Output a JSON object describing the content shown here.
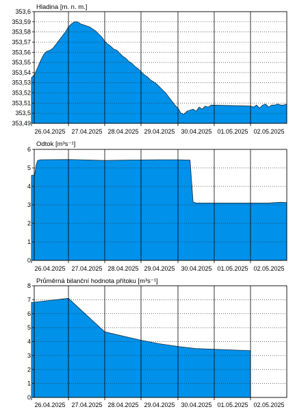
{
  "fill_color": "#0091EA",
  "grid_color": "#333333",
  "x_labels": [
    "26.04.2025",
    "27.04.2025",
    "28.04.2025",
    "29.04.2025",
    "30.04.2025",
    "01.05.2025",
    "02.05.2025"
  ],
  "chart_data": [
    {
      "type": "area",
      "title": "Hladina [m. n. m.]",
      "xlabel": "",
      "ylabel": "",
      "ylim": [
        353.49,
        353.6
      ],
      "yticks": [
        "353,49",
        "353,5",
        "353,51",
        "353,52",
        "353,53",
        "353,54",
        "353,55",
        "353,56",
        "353,57",
        "353,58",
        "353,59",
        "353,6"
      ],
      "xlim": [
        "26.04.2025",
        "02.05.2025"
      ],
      "grid": true,
      "series": [
        {
          "x": [
            "26.04.2025 00:00",
            "26.04.2025 02:00",
            "26.04.2025 04:00",
            "26.04.2025 06:00",
            "26.04.2025 08:00",
            "26.04.2025 10:00",
            "26.04.2025 12:00",
            "26.04.2025 14:00",
            "26.04.2025 16:00",
            "26.04.2025 18:00",
            "26.04.2025 20:00",
            "26.04.2025 22:00",
            "27.04.2025 00:00",
            "27.04.2025 02:00",
            "27.04.2025 04:00",
            "27.04.2025 06:00",
            "27.04.2025 08:00",
            "27.04.2025 10:00",
            "27.04.2025 12:00",
            "27.04.2025 14:00",
            "27.04.2025 16:00",
            "27.04.2025 18:00",
            "27.04.2025 20:00",
            "27.04.2025 22:00",
            "28.04.2025 00:00",
            "28.04.2025 02:00",
            "28.04.2025 04:00",
            "28.04.2025 06:00",
            "28.04.2025 08:00",
            "28.04.2025 10:00",
            "28.04.2025 12:00",
            "28.04.2025 14:00",
            "28.04.2025 16:00",
            "28.04.2025 18:00",
            "28.04.2025 20:00",
            "28.04.2025 22:00",
            "29.04.2025 00:00",
            "29.04.2025 02:00",
            "29.04.2025 04:00",
            "29.04.2025 06:00",
            "29.04.2025 08:00",
            "29.04.2025 10:00",
            "29.04.2025 12:00",
            "29.04.2025 14:00",
            "29.04.2025 16:00",
            "29.04.2025 18:00",
            "29.04.2025 20:00",
            "29.04.2025 22:00",
            "30.04.2025 00:00",
            "30.04.2025 02:00",
            "30.04.2025 04:00",
            "30.04.2025 06:00",
            "30.04.2025 08:00",
            "30.04.2025 10:00",
            "30.04.2025 12:00",
            "30.04.2025 14:00",
            "30.04.2025 16:00",
            "30.04.2025 18:00",
            "30.04.2025 20:00",
            "30.04.2025 22:00",
            "01.05.2025 00:00",
            "01.05.2025 02:00",
            "01.05.2025 04:00",
            "01.05.2025 06:00",
            "01.05.2025 08:00",
            "01.05.2025 10:00",
            "01.05.2025 12:00",
            "01.05.2025 14:00",
            "01.05.2025 16:00",
            "01.05.2025 18:00",
            "01.05.2025 20:00",
            "01.05.2025 22:00",
            "02.05.2025 00:00"
          ],
          "values": [
            353.535,
            353.538,
            353.545,
            353.552,
            353.558,
            353.561,
            353.562,
            353.564,
            353.568,
            353.572,
            353.576,
            353.58,
            353.585,
            353.588,
            353.59,
            353.59,
            353.588,
            353.587,
            353.586,
            353.585,
            353.583,
            353.581,
            353.578,
            353.575,
            353.571,
            353.568,
            353.566,
            353.563,
            353.562,
            353.559,
            353.556,
            353.554,
            353.551,
            353.549,
            353.546,
            353.544,
            353.541,
            353.538,
            353.536,
            353.533,
            353.531,
            353.529,
            353.526,
            353.523,
            353.52,
            353.516,
            353.512,
            353.508,
            353.505,
            353.5,
            353.499,
            353.502,
            353.503,
            353.504,
            353.502,
            353.506,
            353.504,
            353.507,
            353.506,
            353.508,
            353.507,
            353.506,
            353.508,
            353.505,
            353.508,
            353.509,
            353.506,
            353.508,
            353.508,
            353.509,
            353.508,
            353.508,
            353.509
          ]
        }
      ]
    },
    {
      "type": "area",
      "title": "Odtok [m³s⁻¹]",
      "xlabel": "",
      "ylabel": "",
      "ylim": [
        0,
        6
      ],
      "yticks": [
        "0",
        "1",
        "2",
        "3",
        "4",
        "5",
        "6"
      ],
      "xlim": [
        "26.04.2025",
        "02.05.2025"
      ],
      "grid": true,
      "series": [
        {
          "x": [
            "26.04.2025 00:00",
            "26.04.2025 02:00",
            "26.04.2025 03:00",
            "26.04.2025 04:00",
            "26.04.2025 06:00",
            "27.04.2025 00:00",
            "27.04.2025 12:00",
            "28.04.2025 00:00",
            "28.04.2025 12:00",
            "29.04.2025 00:00",
            "29.04.2025 12:00",
            "30.04.2025 00:00",
            "30.04.2025 08:00",
            "30.04.2025 10:00",
            "30.04.2025 12:00",
            "01.05.2025 00:00",
            "01.05.2025 12:00",
            "01.05.2025 20:00",
            "02.05.2025 00:00"
          ],
          "values": [
            4.6,
            4.6,
            5.15,
            5.4,
            5.44,
            5.45,
            5.43,
            5.4,
            5.42,
            5.43,
            5.44,
            5.44,
            5.42,
            3.15,
            3.1,
            3.1,
            3.1,
            3.14,
            3.12
          ]
        }
      ]
    },
    {
      "type": "area",
      "title": "Průměrná bilanční hodnota přítoku   [m³s⁻¹]",
      "xlabel": "",
      "ylabel": "",
      "ylim": [
        0,
        8
      ],
      "yticks": [
        "0",
        "1",
        "2",
        "3",
        "4",
        "5",
        "6",
        "7",
        "8"
      ],
      "xlim": [
        "26.04.2025",
        "02.05.2025"
      ],
      "grid": true,
      "series": [
        {
          "x": [
            "26.04.2025 00:00",
            "26.04.2025 12:00",
            "27.04.2025 00:00",
            "27.04.2025 12:00",
            "28.04.2025 00:00",
            "28.04.2025 12:00",
            "29.04.2025 00:00",
            "29.04.2025 12:00",
            "30.04.2025 00:00",
            "30.04.2025 12:00",
            "01.05.2025 00:00"
          ],
          "values": [
            6.8,
            6.95,
            7.1,
            5.9,
            4.7,
            4.4,
            4.1,
            3.85,
            3.65,
            3.5,
            3.35
          ]
        }
      ]
    }
  ]
}
